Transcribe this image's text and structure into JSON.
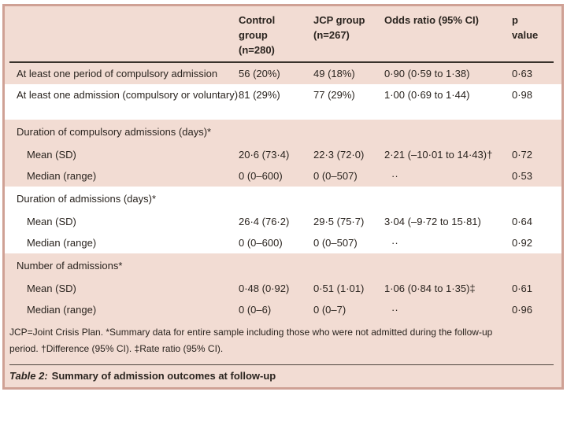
{
  "table": {
    "header": {
      "col_control": "Control\ngroup\n(n=280)",
      "col_jcp": "JCP group\n(n=267)",
      "col_or": "Odds ratio (95% CI)",
      "col_p": "p\nvalue"
    },
    "rows": [
      {
        "label": "At least one period of compulsory admission",
        "control": "56 (20%)",
        "jcp": "49 (18%)",
        "or": "0·90 (0·59 to 1·38)",
        "p": "0·63"
      },
      {
        "label": "At least one admission (compulsory or voluntary)",
        "control": "81 (29%)",
        "jcp": "77 (29%)",
        "or": "1·00 (0·69 to 1·44)",
        "p": "0·98"
      },
      {
        "label": "Duration of compulsory admissions (days)*"
      },
      {
        "label": "Mean (SD)",
        "control": "20·6 (73·4)",
        "jcp": "22·3 (72·0)",
        "or": "2·21 (–10·01 to 14·43)†",
        "p": "0·72"
      },
      {
        "label": "Median (range)",
        "control": "0 (0–600)",
        "jcp": "0 (0–507)",
        "or": "··",
        "p": "0·53"
      },
      {
        "label": "Duration of admissions (days)*"
      },
      {
        "label": "Mean (SD)",
        "control": "26·4 (76·2)",
        "jcp": "29·5 (75·7)",
        "or": "3·04 (–9·72 to 15·81)",
        "p": "0·64"
      },
      {
        "label": "Median (range)",
        "control": "0 (0–600)",
        "jcp": "0 (0–507)",
        "or": "··",
        "p": "0·92"
      },
      {
        "label": "Number of admissions*"
      },
      {
        "label": "Mean (SD)",
        "control": "0·48 (0·92)",
        "jcp": "0·51 (1·01)",
        "or": "1·06 (0·84 to 1·35)‡",
        "p": "0·61"
      },
      {
        "label": "Median (range)",
        "control": "0 (0–6)",
        "jcp": "0 (0–7)",
        "or": "··",
        "p": "0·96"
      }
    ],
    "footnote": "JCP=Joint Crisis Plan. *Summary data for entire sample including those who were not admitted during the follow-up\nperiod. †Difference (95% CI). ‡Rate ratio (95% CI).",
    "caption_prefix": "Table 2:",
    "caption_text": "Summary of admission outcomes at follow-up",
    "colors": {
      "table_background": "#f2dcd3",
      "table_border": "#cfa195",
      "text": "#2a241f",
      "row_highlight": "#ffffff"
    }
  }
}
